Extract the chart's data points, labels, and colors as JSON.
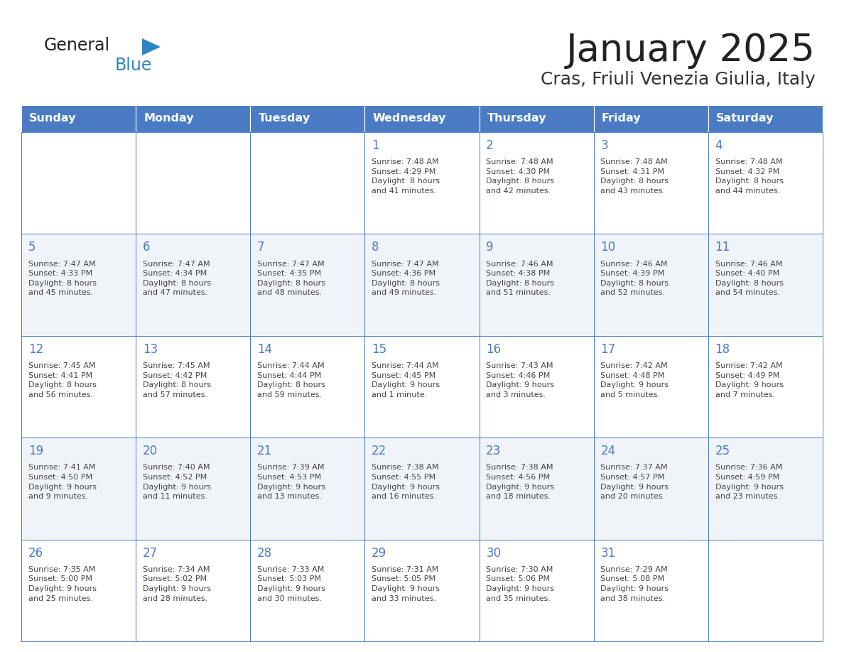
{
  "title": "January 2025",
  "subtitle": "Cras, Friuli Venezia Giulia, Italy",
  "days_of_week": [
    "Sunday",
    "Monday",
    "Tuesday",
    "Wednesday",
    "Thursday",
    "Friday",
    "Saturday"
  ],
  "header_bg": "#4A7BC4",
  "header_text": "#FFFFFF",
  "day_num_color": "#4A7BC4",
  "cell_text_color": "#444444",
  "border_color": "#4A7BC4",
  "week_bg": [
    "#FFFFFF",
    "#F0F4F8",
    "#FFFFFF",
    "#F0F4F8",
    "#FFFFFF"
  ],
  "cal_data": [
    [
      {
        "day": "",
        "info": ""
      },
      {
        "day": "",
        "info": ""
      },
      {
        "day": "",
        "info": ""
      },
      {
        "day": "1",
        "info": "Sunrise: 7:48 AM\nSunset: 4:29 PM\nDaylight: 8 hours\nand 41 minutes."
      },
      {
        "day": "2",
        "info": "Sunrise: 7:48 AM\nSunset: 4:30 PM\nDaylight: 8 hours\nand 42 minutes."
      },
      {
        "day": "3",
        "info": "Sunrise: 7:48 AM\nSunset: 4:31 PM\nDaylight: 8 hours\nand 43 minutes."
      },
      {
        "day": "4",
        "info": "Sunrise: 7:48 AM\nSunset: 4:32 PM\nDaylight: 8 hours\nand 44 minutes."
      }
    ],
    [
      {
        "day": "5",
        "info": "Sunrise: 7:47 AM\nSunset: 4:33 PM\nDaylight: 8 hours\nand 45 minutes."
      },
      {
        "day": "6",
        "info": "Sunrise: 7:47 AM\nSunset: 4:34 PM\nDaylight: 8 hours\nand 47 minutes."
      },
      {
        "day": "7",
        "info": "Sunrise: 7:47 AM\nSunset: 4:35 PM\nDaylight: 8 hours\nand 48 minutes."
      },
      {
        "day": "8",
        "info": "Sunrise: 7:47 AM\nSunset: 4:36 PM\nDaylight: 8 hours\nand 49 minutes."
      },
      {
        "day": "9",
        "info": "Sunrise: 7:46 AM\nSunset: 4:38 PM\nDaylight: 8 hours\nand 51 minutes."
      },
      {
        "day": "10",
        "info": "Sunrise: 7:46 AM\nSunset: 4:39 PM\nDaylight: 8 hours\nand 52 minutes."
      },
      {
        "day": "11",
        "info": "Sunrise: 7:46 AM\nSunset: 4:40 PM\nDaylight: 8 hours\nand 54 minutes."
      }
    ],
    [
      {
        "day": "12",
        "info": "Sunrise: 7:45 AM\nSunset: 4:41 PM\nDaylight: 8 hours\nand 56 minutes."
      },
      {
        "day": "13",
        "info": "Sunrise: 7:45 AM\nSunset: 4:42 PM\nDaylight: 8 hours\nand 57 minutes."
      },
      {
        "day": "14",
        "info": "Sunrise: 7:44 AM\nSunset: 4:44 PM\nDaylight: 8 hours\nand 59 minutes."
      },
      {
        "day": "15",
        "info": "Sunrise: 7:44 AM\nSunset: 4:45 PM\nDaylight: 9 hours\nand 1 minute."
      },
      {
        "day": "16",
        "info": "Sunrise: 7:43 AM\nSunset: 4:46 PM\nDaylight: 9 hours\nand 3 minutes."
      },
      {
        "day": "17",
        "info": "Sunrise: 7:42 AM\nSunset: 4:48 PM\nDaylight: 9 hours\nand 5 minutes."
      },
      {
        "day": "18",
        "info": "Sunrise: 7:42 AM\nSunset: 4:49 PM\nDaylight: 9 hours\nand 7 minutes."
      }
    ],
    [
      {
        "day": "19",
        "info": "Sunrise: 7:41 AM\nSunset: 4:50 PM\nDaylight: 9 hours\nand 9 minutes."
      },
      {
        "day": "20",
        "info": "Sunrise: 7:40 AM\nSunset: 4:52 PM\nDaylight: 9 hours\nand 11 minutes."
      },
      {
        "day": "21",
        "info": "Sunrise: 7:39 AM\nSunset: 4:53 PM\nDaylight: 9 hours\nand 13 minutes."
      },
      {
        "day": "22",
        "info": "Sunrise: 7:38 AM\nSunset: 4:55 PM\nDaylight: 9 hours\nand 16 minutes."
      },
      {
        "day": "23",
        "info": "Sunrise: 7:38 AM\nSunset: 4:56 PM\nDaylight: 9 hours\nand 18 minutes."
      },
      {
        "day": "24",
        "info": "Sunrise: 7:37 AM\nSunset: 4:57 PM\nDaylight: 9 hours\nand 20 minutes."
      },
      {
        "day": "25",
        "info": "Sunrise: 7:36 AM\nSunset: 4:59 PM\nDaylight: 9 hours\nand 23 minutes."
      }
    ],
    [
      {
        "day": "26",
        "info": "Sunrise: 7:35 AM\nSunset: 5:00 PM\nDaylight: 9 hours\nand 25 minutes."
      },
      {
        "day": "27",
        "info": "Sunrise: 7:34 AM\nSunset: 5:02 PM\nDaylight: 9 hours\nand 28 minutes."
      },
      {
        "day": "28",
        "info": "Sunrise: 7:33 AM\nSunset: 5:03 PM\nDaylight: 9 hours\nand 30 minutes."
      },
      {
        "day": "29",
        "info": "Sunrise: 7:31 AM\nSunset: 5:05 PM\nDaylight: 9 hours\nand 33 minutes."
      },
      {
        "day": "30",
        "info": "Sunrise: 7:30 AM\nSunset: 5:06 PM\nDaylight: 9 hours\nand 35 minutes."
      },
      {
        "day": "31",
        "info": "Sunrise: 7:29 AM\nSunset: 5:08 PM\nDaylight: 9 hours\nand 38 minutes."
      },
      {
        "day": "",
        "info": ""
      }
    ]
  ],
  "logo_general_color": "#222222",
  "logo_blue_color": "#2E86C1",
  "logo_triangle_color": "#2E86C1",
  "title_color": "#222222",
  "subtitle_color": "#333333"
}
